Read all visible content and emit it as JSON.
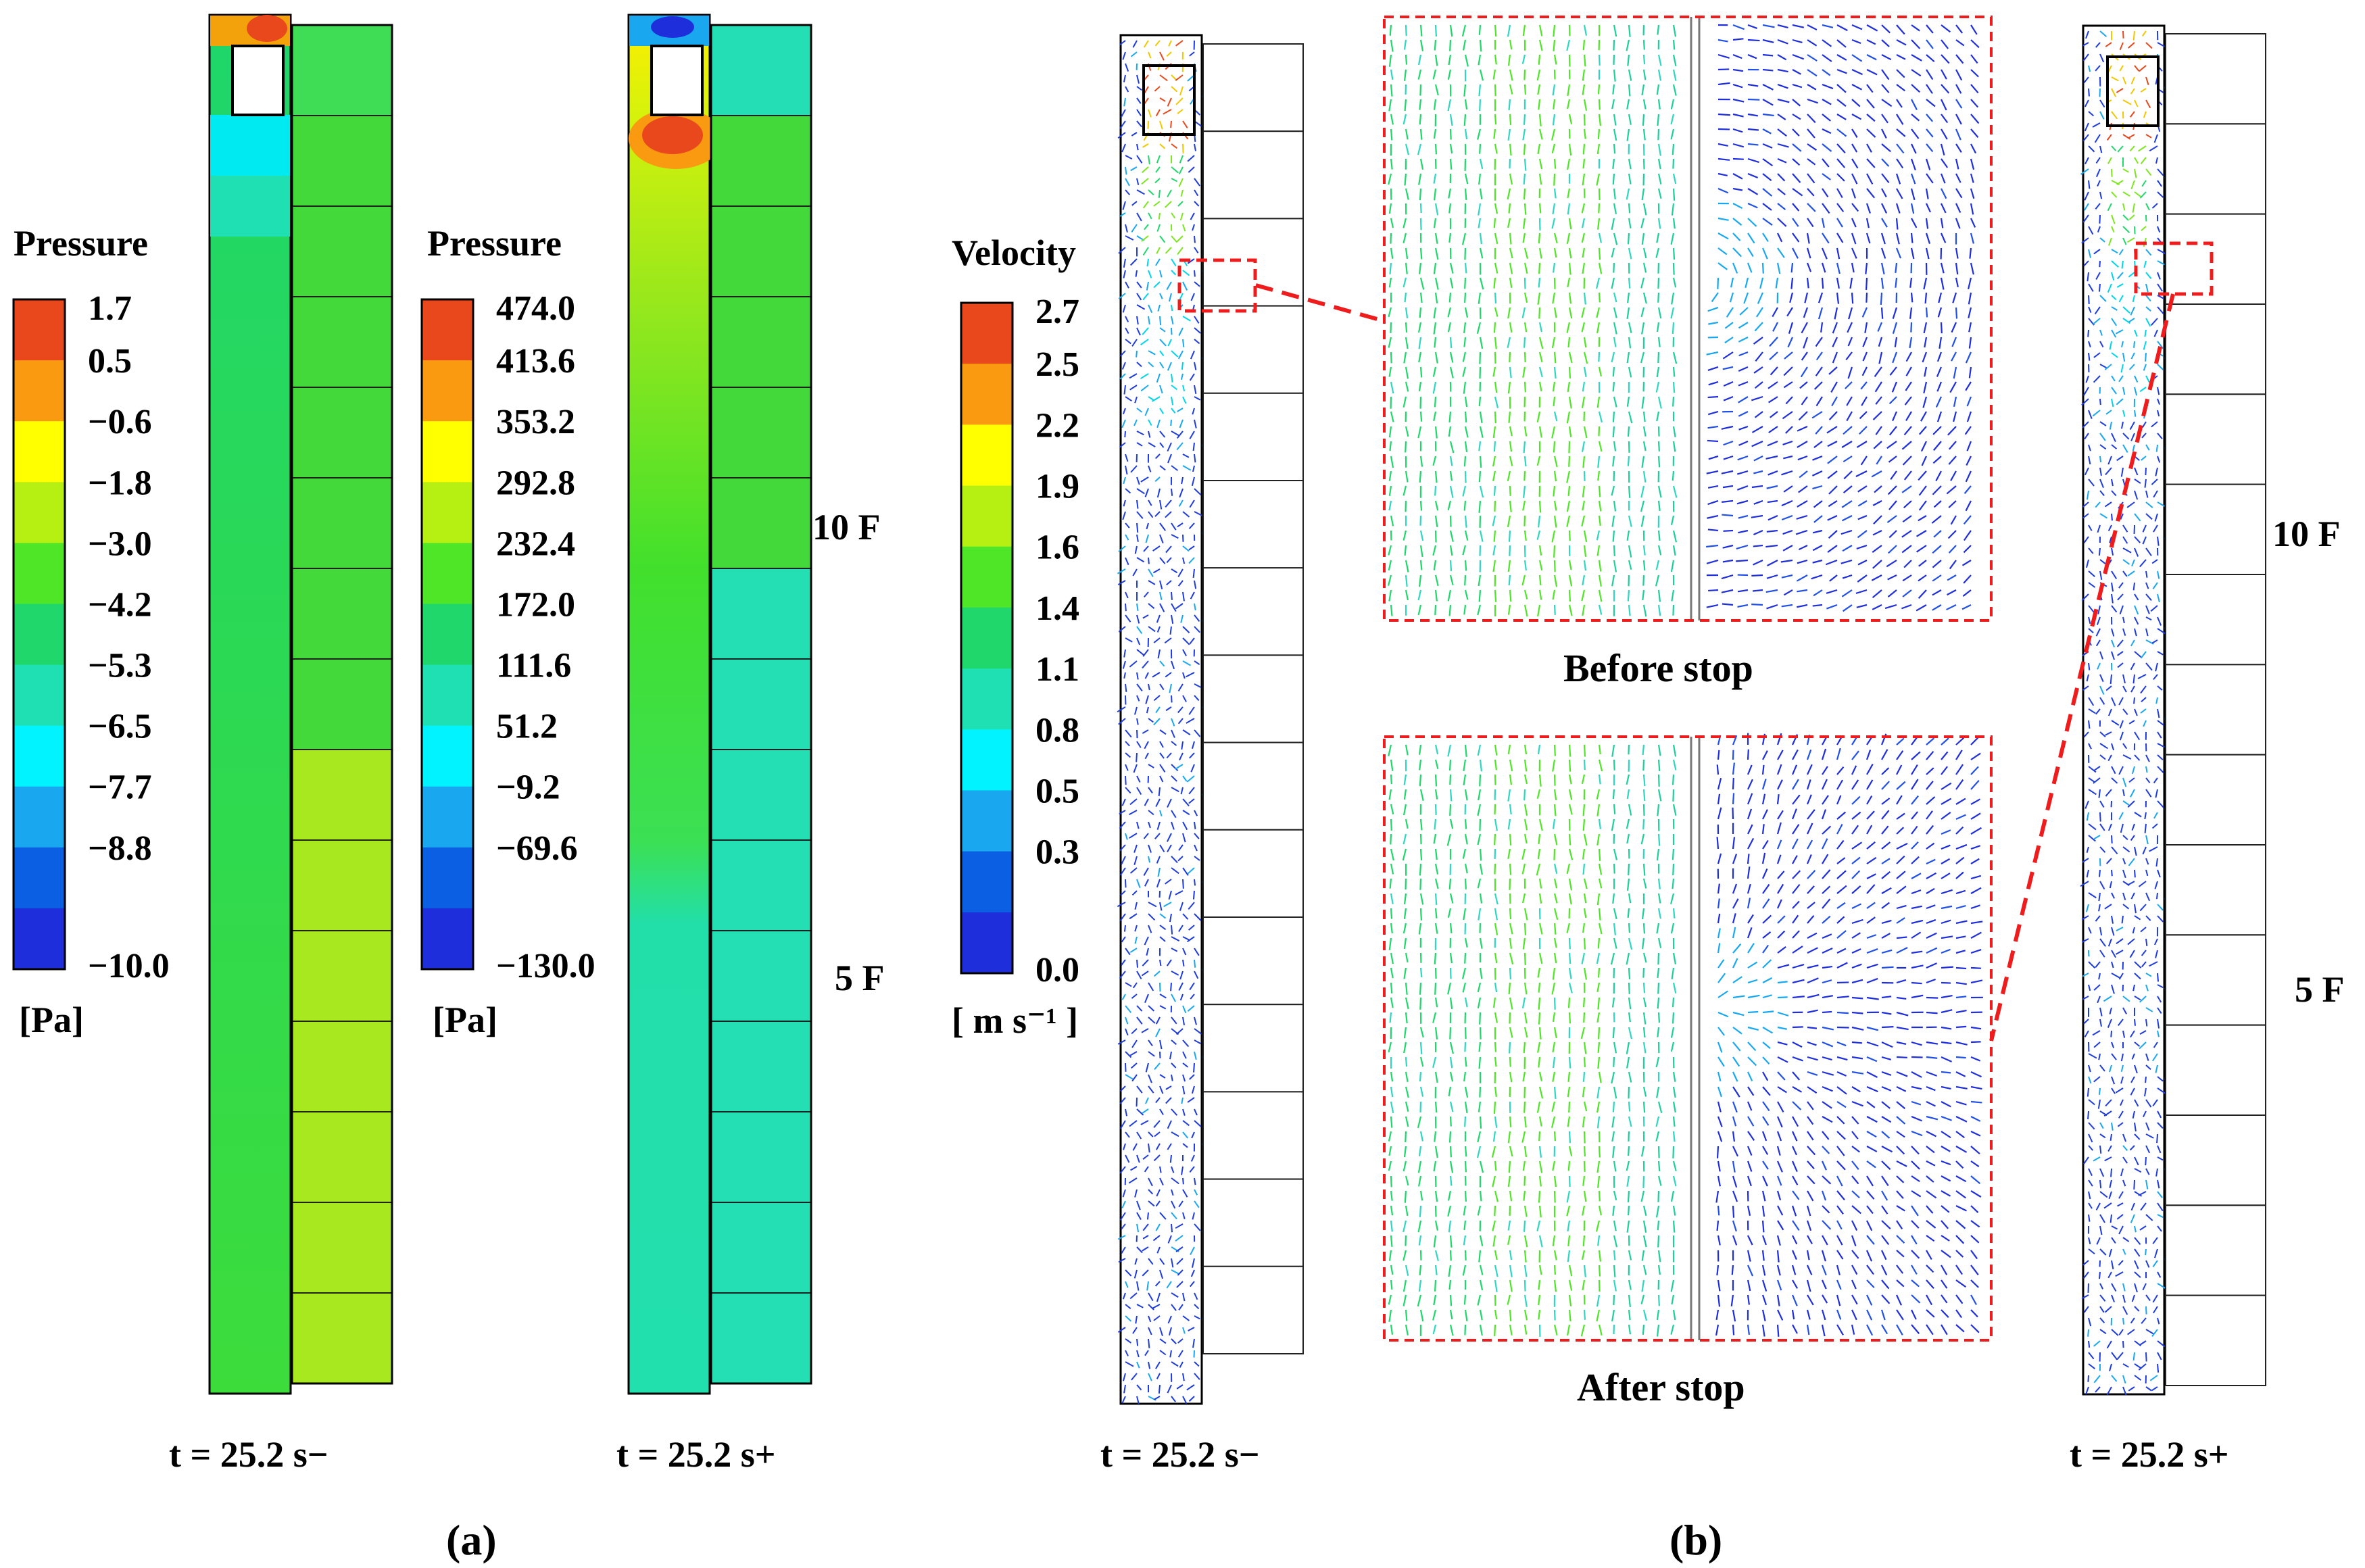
{
  "panel_a": {
    "label": "(a)",
    "before": {
      "title": "Pressure",
      "unit": "[Pa]",
      "ticks": [
        "1.7",
        "0.5",
        "−0.6",
        "−1.8",
        "−3.0",
        "−4.2",
        "−5.3",
        "−6.5",
        "−7.7",
        "−8.8",
        "−10.0"
      ],
      "time": "t = 25.2 s−"
    },
    "after": {
      "title": "Pressure",
      "unit": "[Pa]",
      "ticks": [
        "474.0",
        "413.6",
        "353.2",
        "292.8",
        "232.4",
        "172.0",
        "111.6",
        "51.2",
        "−9.2",
        "−69.6",
        "−130.0"
      ],
      "time": "t = 25.2 s+",
      "floor_10": "10 F",
      "floor_5": "5 F"
    }
  },
  "panel_b": {
    "label": "(b)",
    "legend_title": "Velocity",
    "legend_unit": "[ m s⁻¹ ]",
    "ticks": [
      "2.7",
      "2.5",
      "2.2",
      "1.9",
      "1.6",
      "1.4",
      "1.1",
      "0.8",
      "0.5",
      "0.3",
      "0.0"
    ],
    "time_before": "t = 25.2 s−",
    "time_after": "t = 25.2 s+",
    "zoom_before": "Before stop",
    "zoom_after": "After stop",
    "floor_10": "10 F",
    "floor_5": "5 F"
  },
  "colors": {
    "band_colors": [
      "#e8481c",
      "#f99a10",
      "#ffff00",
      "#b6f012",
      "#4fe627",
      "#1fd76b",
      "#1fe0b2",
      "#00f3ff",
      "#19a8f0",
      "#0b5fe3",
      "#1e2edb"
    ],
    "callout": "#ee1c1c"
  }
}
